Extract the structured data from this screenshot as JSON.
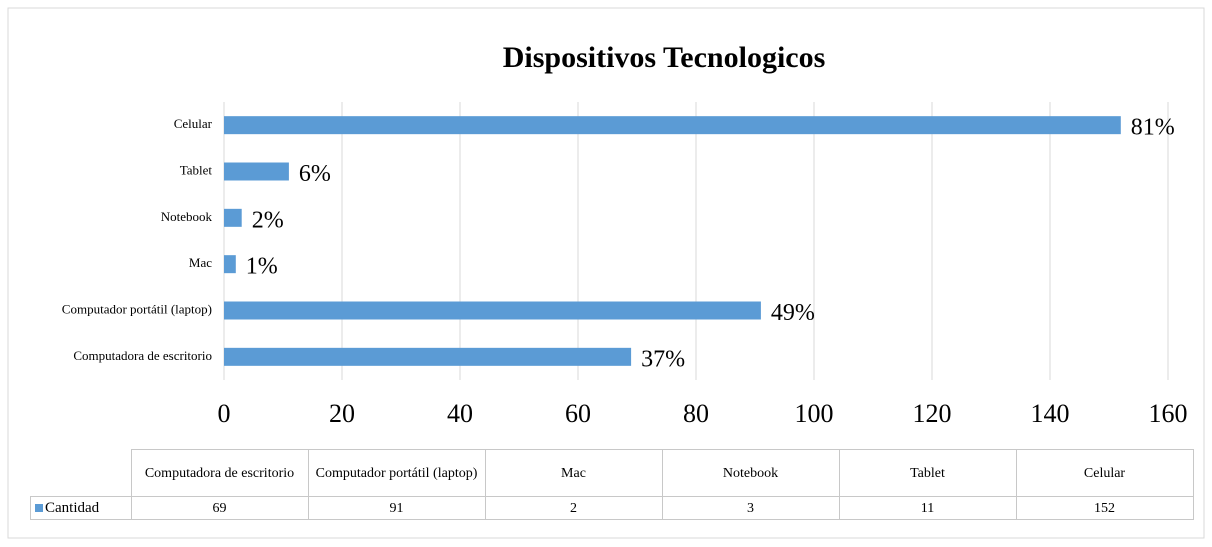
{
  "chart_data": {
    "type": "bar",
    "orientation": "horizontal",
    "title": "Dispositivos Tecnologicos",
    "categories": [
      "Computadora de escritorio",
      "Computador portátil (laptop)",
      "Mac",
      "Notebook",
      "Tablet",
      "Celular"
    ],
    "series": [
      {
        "name": "Cantidad",
        "color": "#5b9bd5",
        "values": [
          69,
          91,
          2,
          3,
          11,
          152
        ]
      }
    ],
    "annotations": [
      "37%",
      "49%",
      "1%",
      "2%",
      "6%",
      "81%"
    ],
    "xlim": [
      0,
      160
    ],
    "xticks": [
      0,
      20,
      40,
      60,
      80,
      100,
      120,
      140,
      160
    ],
    "grid": true,
    "data_table": true
  }
}
